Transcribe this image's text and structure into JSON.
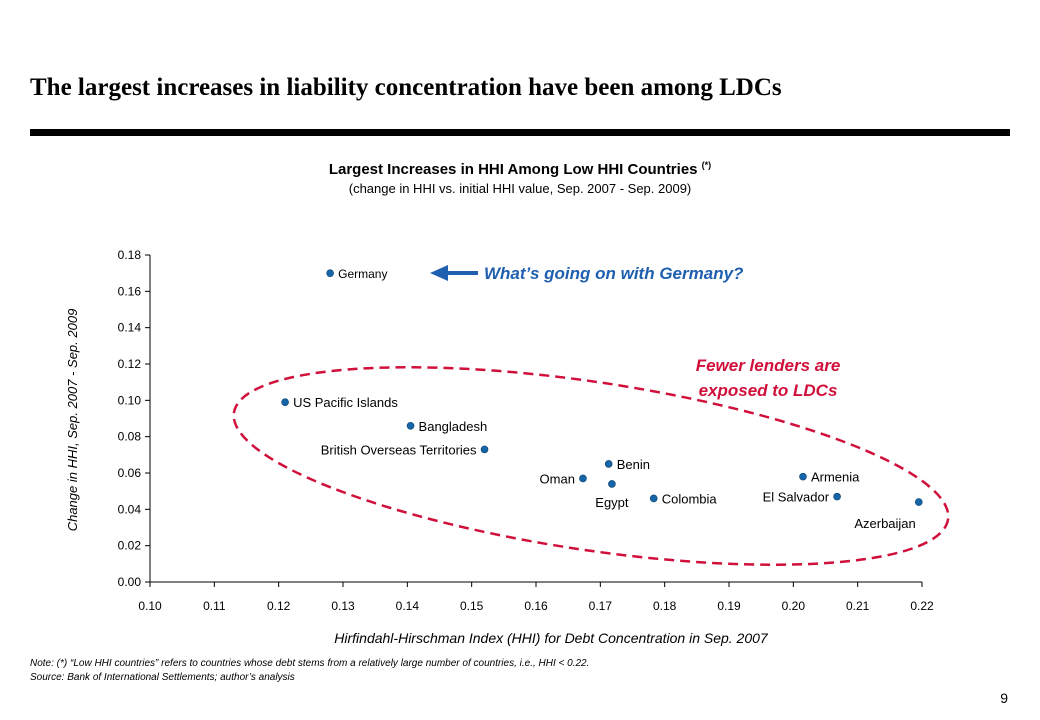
{
  "slide": {
    "title": "The largest increases in liability concentration have been among LDCs",
    "page_number": "9"
  },
  "notes": {
    "note": "Note: (*) “Low HHI countries” refers to countries whose debt stems from a relatively large number of countries, i.e., HHI < 0.22.",
    "source": "Source: Bank of International Settlements; author’s analysis"
  },
  "chart_data": {
    "type": "scatter",
    "title": "Largest Increases in HHI Among Low HHI Countries",
    "title_superscript": "(*)",
    "subtitle": "(change in HHI vs. initial HHI value, Sep. 2007 - Sep. 2009)",
    "xlabel": "Hirfindahl-Hirschman Index (HHI) for Debt Concentration in Sep. 2007",
    "ylabel": "Change in HHI, Sep. 2007 - Sep. 2009",
    "xlim": [
      0.1,
      0.22
    ],
    "ylim": [
      0.0,
      0.18
    ],
    "x_ticks": [
      "0.10",
      "0.11",
      "0.12",
      "0.13",
      "0.14",
      "0.15",
      "0.16",
      "0.17",
      "0.18",
      "0.19",
      "0.20",
      "0.21",
      "0.22"
    ],
    "y_ticks": [
      "0.00",
      "0.02",
      "0.04",
      "0.06",
      "0.08",
      "0.10",
      "0.12",
      "0.14",
      "0.16",
      "0.18"
    ],
    "grid": false,
    "marker_color": "#1565a8",
    "points": [
      {
        "label": "Germany",
        "x": 0.128,
        "y": 0.17,
        "label_pos": "right"
      },
      {
        "label": "US Pacific Islands",
        "x": 0.121,
        "y": 0.099,
        "label_pos": "right"
      },
      {
        "label": "Bangladesh",
        "x": 0.1405,
        "y": 0.086,
        "label_pos": "right"
      },
      {
        "label": "British Overseas Territories",
        "x": 0.152,
        "y": 0.073,
        "label_pos": "left"
      },
      {
        "label": "Benin",
        "x": 0.1713,
        "y": 0.065,
        "label_pos": "right"
      },
      {
        "label": "Oman",
        "x": 0.1673,
        "y": 0.057,
        "label_pos": "left"
      },
      {
        "label": "Egypt",
        "x": 0.1718,
        "y": 0.054,
        "label_pos": "below"
      },
      {
        "label": "Colombia",
        "x": 0.1783,
        "y": 0.046,
        "label_pos": "right"
      },
      {
        "label": "Armenia",
        "x": 0.2015,
        "y": 0.058,
        "label_pos": "right"
      },
      {
        "label": "El Salvador",
        "x": 0.2068,
        "y": 0.047,
        "label_pos": "left"
      },
      {
        "label": "Azerbaijan",
        "x": 0.2195,
        "y": 0.044,
        "label_pos": "below-left"
      }
    ],
    "annotations": {
      "germany_callout": "What’s going on with Germany?",
      "callout_color": "#1f5fb0",
      "ellipse_label_line1": "Fewer lenders are",
      "ellipse_label_line2": "exposed to LDCs",
      "ellipse_color": "#d0103a"
    }
  }
}
